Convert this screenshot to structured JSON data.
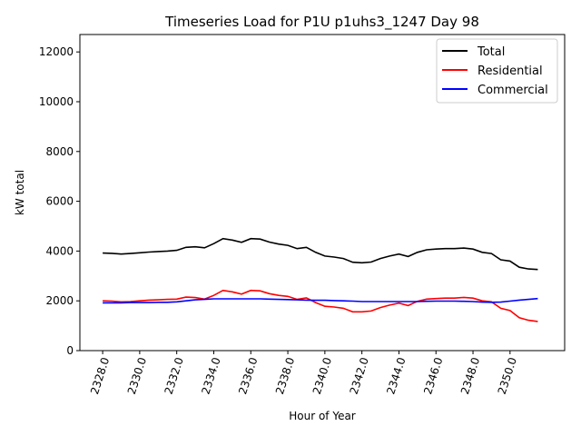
{
  "chart_data": {
    "type": "line",
    "title": "Timeseries Load for P1U p1uhs3_1247  Day 98",
    "xlabel": "Hour of Year",
    "ylabel": "kW total",
    "xlim": [
      2326.77,
      2352.95
    ],
    "ylim": [
      0,
      12700
    ],
    "xticks": [
      2328,
      2330,
      2332,
      2334,
      2336,
      2338,
      2340,
      2342,
      2344,
      2346,
      2348,
      2350
    ],
    "xtick_labels": [
      "2328.0",
      "2330.0",
      "2332.0",
      "2334.0",
      "2336.0",
      "2338.0",
      "2340.0",
      "2342.0",
      "2344.0",
      "2346.0",
      "2348.0",
      "2350.0"
    ],
    "yticks": [
      0,
      2000,
      4000,
      6000,
      8000,
      10000,
      12000
    ],
    "ytick_labels": [
      "0",
      "2000",
      "4000",
      "6000",
      "8000",
      "10000",
      "12000"
    ],
    "grid": false,
    "legend": "top-right",
    "x": [
      2328,
      2328.5,
      2329,
      2329.5,
      2330,
      2330.5,
      2331,
      2331.5,
      2332,
      2332.5,
      2333,
      2333.5,
      2334,
      2334.5,
      2335,
      2335.5,
      2336,
      2336.5,
      2337,
      2337.5,
      2338,
      2338.5,
      2339,
      2339.5,
      2340,
      2340.5,
      2341,
      2341.5,
      2342,
      2342.5,
      2343,
      2343.5,
      2344,
      2344.5,
      2345,
      2345.5,
      2346,
      2346.5,
      2347,
      2347.5,
      2348,
      2348.5,
      2349,
      2349.5,
      2350,
      2350.5,
      2351,
      2351.5
    ],
    "series": [
      {
        "name": "Total",
        "color": "#000000",
        "values": [
          3920,
          3910,
          3880,
          3900,
          3930,
          3960,
          3980,
          4000,
          4030,
          4150,
          4170,
          4130,
          4300,
          4500,
          4440,
          4350,
          4500,
          4480,
          4360,
          4280,
          4230,
          4100,
          4150,
          3950,
          3800,
          3760,
          3700,
          3550,
          3530,
          3560,
          3700,
          3800,
          3880,
          3780,
          3950,
          4050,
          4080,
          4100,
          4100,
          4120,
          4080,
          3950,
          3900,
          3650,
          3600,
          3350,
          3280,
          3260
        ]
      },
      {
        "name": "Residential",
        "color": "#ff0000",
        "values": [
          2000,
          1990,
          1960,
          1970,
          2000,
          2030,
          2040,
          2060,
          2070,
          2150,
          2130,
          2070,
          2220,
          2420,
          2360,
          2270,
          2420,
          2400,
          2290,
          2220,
          2180,
          2060,
          2120,
          1930,
          1780,
          1750,
          1700,
          1560,
          1560,
          1590,
          1730,
          1830,
          1910,
          1810,
          1980,
          2070,
          2090,
          2110,
          2110,
          2140,
          2110,
          2000,
          1960,
          1700,
          1610,
          1320,
          1220,
          1170
        ]
      },
      {
        "name": "Commercial",
        "color": "#0000ff",
        "values": [
          1920,
          1920,
          1920,
          1930,
          1930,
          1930,
          1940,
          1940,
          1960,
          2000,
          2040,
          2060,
          2080,
          2080,
          2080,
          2080,
          2080,
          2080,
          2070,
          2060,
          2050,
          2040,
          2030,
          2020,
          2020,
          2010,
          2000,
          1990,
          1970,
          1970,
          1970,
          1970,
          1970,
          1970,
          1970,
          1980,
          1990,
          1990,
          1990,
          1980,
          1970,
          1950,
          1940,
          1950,
          1990,
          2030,
          2060,
          2090
        ]
      }
    ]
  }
}
